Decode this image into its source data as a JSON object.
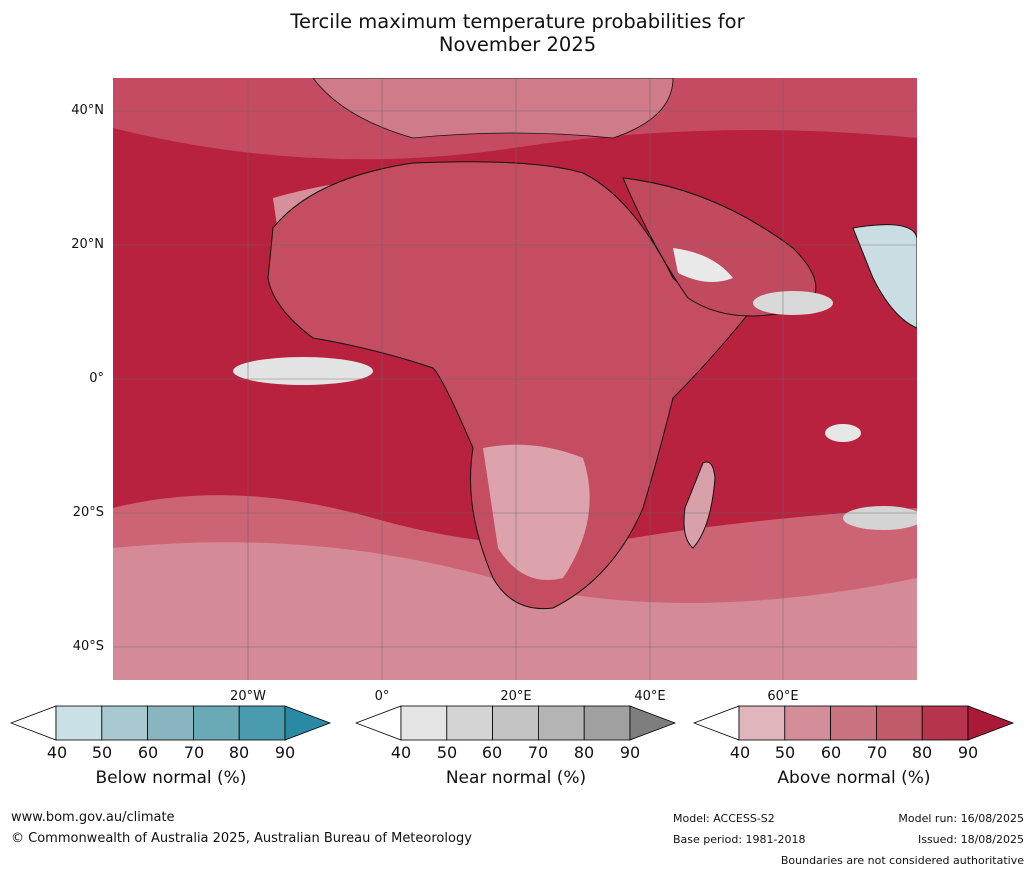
{
  "title": {
    "line1": "Tercile maximum temperature probabilities for",
    "line2": "November 2025"
  },
  "lat_labels": [
    "40°N",
    "20°N",
    "0°",
    "20°S",
    "40°S"
  ],
  "lon_labels": [
    "20°W",
    "0°",
    "20°E",
    "40°E",
    "60°E"
  ],
  "colorbars": [
    {
      "label": "Below normal (%)",
      "ticks": [
        "40",
        "50",
        "60",
        "70",
        "80",
        "90"
      ],
      "colors": [
        "#ffffff",
        "#c8e0e6",
        "#a7c9cf",
        "#88b5bf",
        "#6aa9b6",
        "#4a9bad",
        "#2b8aa3"
      ]
    },
    {
      "label": "Near normal (%)",
      "ticks": [
        "40",
        "50",
        "60",
        "70",
        "80",
        "90"
      ],
      "colors": [
        "#ffffff",
        "#e5e5e5",
        "#d4d4d4",
        "#c4c4c4",
        "#b4b4b4",
        "#a0a0a0",
        "#7e7e7e"
      ]
    },
    {
      "label": "Above normal (%)",
      "ticks": [
        "40",
        "50",
        "60",
        "70",
        "80",
        "90"
      ],
      "colors": [
        "#ffffff",
        "#e1b5bc",
        "#d48e99",
        "#c97380",
        "#c15b6a",
        "#b6344d",
        "#a81a37"
      ]
    }
  ],
  "footer": {
    "website": "www.bom.gov.au/climate",
    "copyright": "© Commonwealth of Australia 2025, Australian Bureau of Meteorology",
    "model": "Model: ACCESS-S2",
    "base_period": "Base period: 1981-2018",
    "model_run": "Model run: 16/08/2025",
    "issued": "Issued: 18/08/2025",
    "disclaimer": "Boundaries are not considered authoritative"
  }
}
